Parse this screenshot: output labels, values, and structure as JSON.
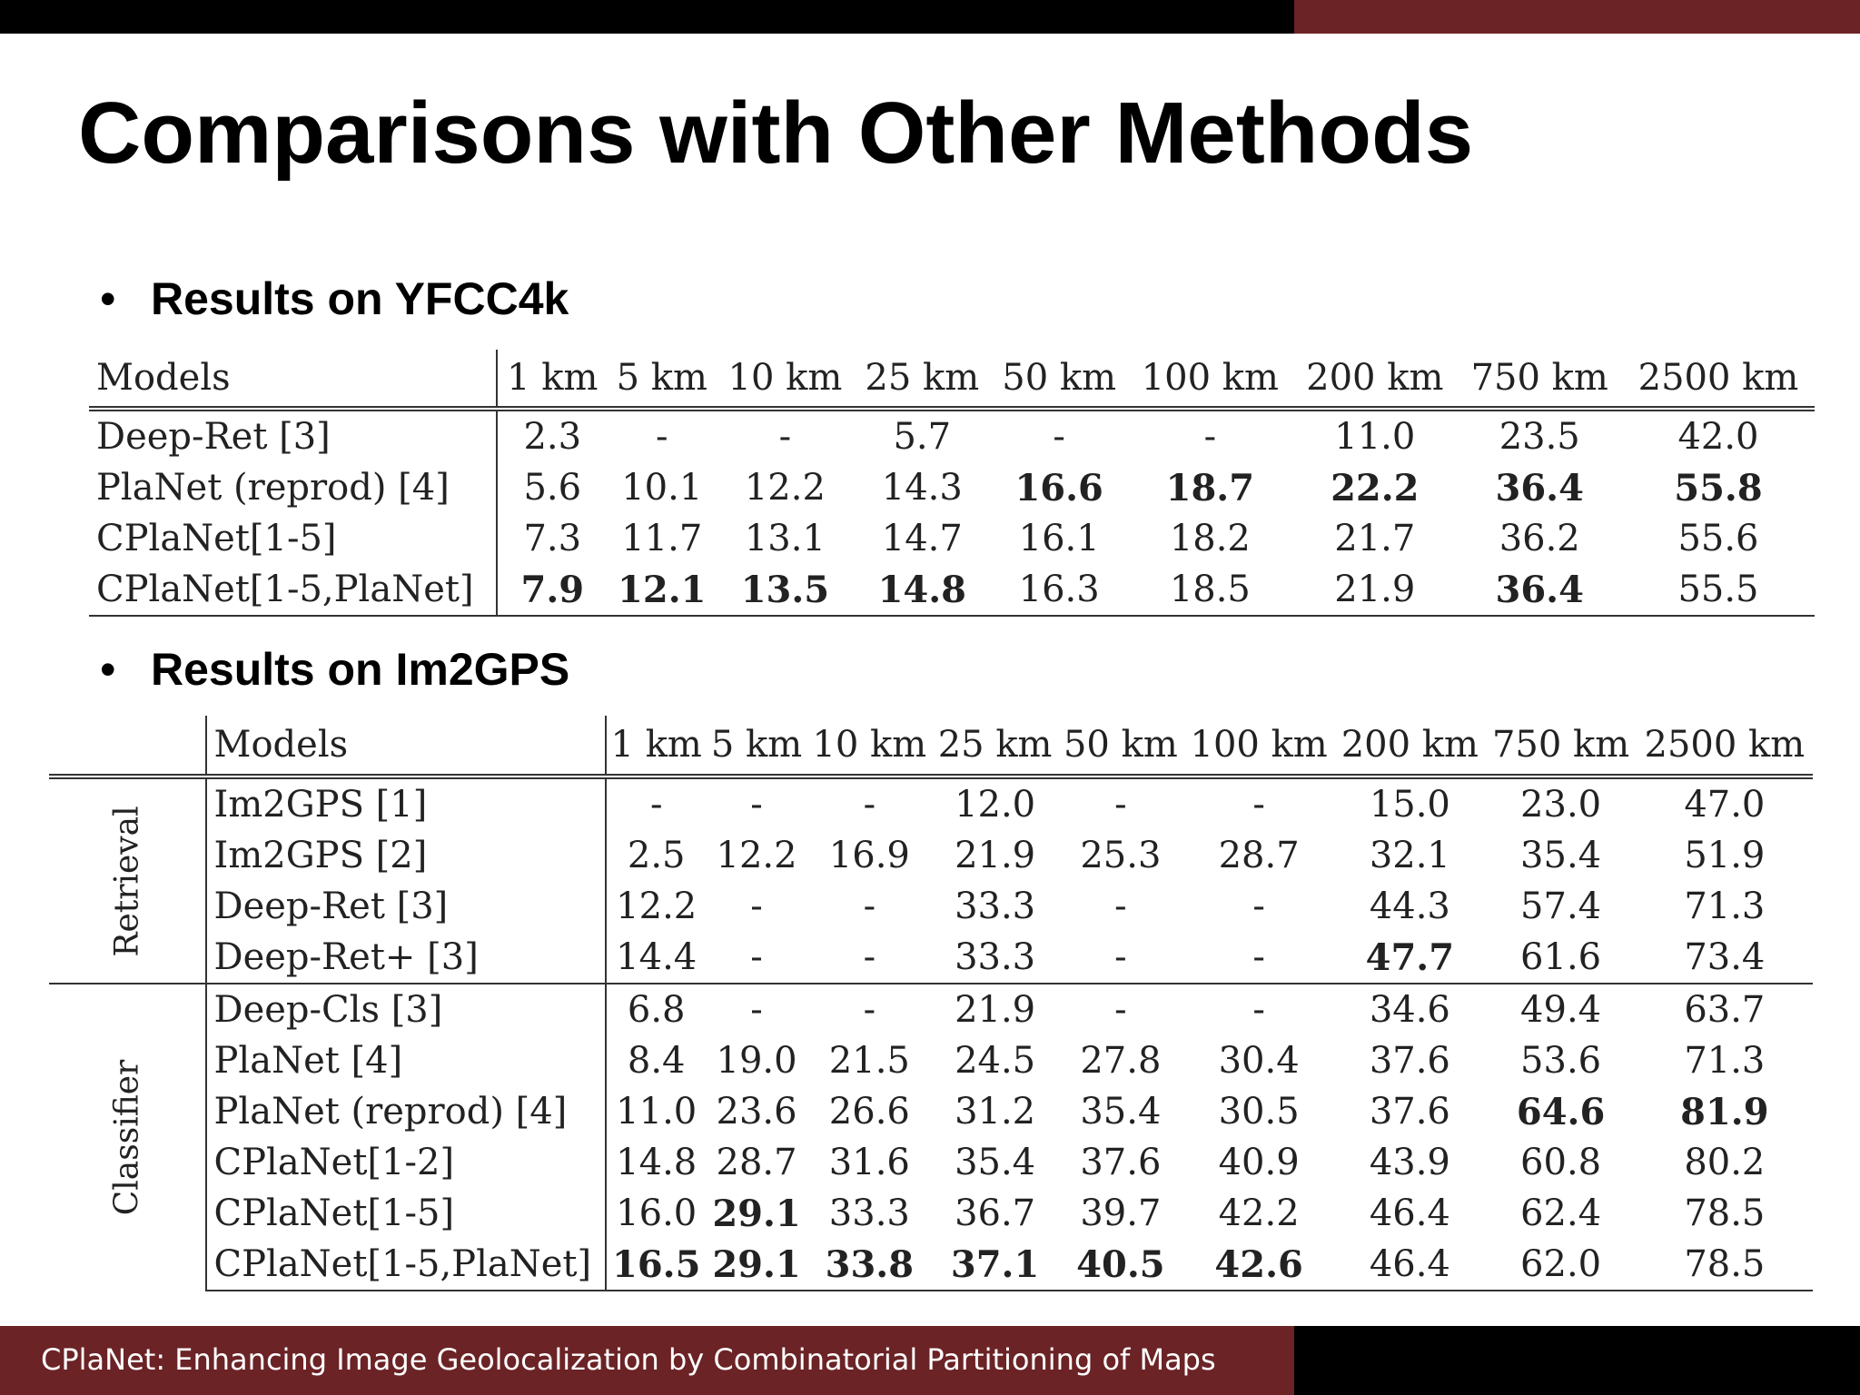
{
  "title": "Comparisons with Other Methods",
  "footer": "CPlaNet: Enhancing Image Geolocalization by Combinatorial Partitioning of Maps",
  "bullet_symbol": "•",
  "colors": {
    "accent": "#6b2326",
    "bar": "#000000"
  },
  "section1": {
    "heading": "Results on YFCC4k",
    "columns": [
      "Models",
      "1 km",
      "5 km",
      "10 km",
      "25 km",
      "50 km",
      "100 km",
      "200 km",
      "750 km",
      "2500 km"
    ],
    "rows": [
      {
        "model": "Deep-Ret [3]",
        "values": [
          "2.3",
          "-",
          "-",
          "5.7",
          "-",
          "-",
          "11.0",
          "23.5",
          "42.0"
        ],
        "bold": []
      },
      {
        "model": "PlaNet (reprod) [4]",
        "values": [
          "5.6",
          "10.1",
          "12.2",
          "14.3",
          "16.6",
          "18.7",
          "22.2",
          "36.4",
          "55.8"
        ],
        "bold": [
          4,
          5,
          6,
          7,
          8
        ]
      },
      {
        "model": "CPlaNet[1-5]",
        "values": [
          "7.3",
          "11.7",
          "13.1",
          "14.7",
          "16.1",
          "18.2",
          "21.7",
          "36.2",
          "55.6"
        ],
        "bold": []
      },
      {
        "model": "CPlaNet[1-5,PlaNet]",
        "values": [
          "7.9",
          "12.1",
          "13.5",
          "14.8",
          "16.3",
          "18.5",
          "21.9",
          "36.4",
          "55.5"
        ],
        "bold": [
          0,
          1,
          2,
          3,
          7
        ]
      }
    ]
  },
  "section2": {
    "heading": "Results on Im2GPS",
    "columns": [
      "Models",
      "1 km",
      "5 km",
      "10 km",
      "25 km",
      "50 km",
      "100 km",
      "200 km",
      "750 km",
      "2500 km"
    ],
    "groups": [
      {
        "label": "Retrieval",
        "rows": [
          {
            "model": "Im2GPS [1]",
            "values": [
              "-",
              "-",
              "-",
              "12.0",
              "-",
              "-",
              "15.0",
              "23.0",
              "47.0"
            ],
            "bold": []
          },
          {
            "model": "Im2GPS [2]",
            "values": [
              "2.5",
              "12.2",
              "16.9",
              "21.9",
              "25.3",
              "28.7",
              "32.1",
              "35.4",
              "51.9"
            ],
            "bold": []
          },
          {
            "model": "Deep-Ret [3]",
            "values": [
              "12.2",
              "-",
              "-",
              "33.3",
              "-",
              "-",
              "44.3",
              "57.4",
              "71.3"
            ],
            "bold": []
          },
          {
            "model": "Deep-Ret+ [3]",
            "values": [
              "14.4",
              "-",
              "-",
              "33.3",
              "-",
              "-",
              "47.7",
              "61.6",
              "73.4"
            ],
            "bold": [
              6
            ]
          }
        ]
      },
      {
        "label": "Classifier",
        "rows": [
          {
            "model": "Deep-Cls [3]",
            "values": [
              "6.8",
              "-",
              "-",
              "21.9",
              "-",
              "-",
              "34.6",
              "49.4",
              "63.7"
            ],
            "bold": []
          },
          {
            "model": "PlaNet [4]",
            "values": [
              "8.4",
              "19.0",
              "21.5",
              "24.5",
              "27.8",
              "30.4",
              "37.6",
              "53.6",
              "71.3"
            ],
            "bold": []
          },
          {
            "model": "PlaNet (reprod) [4]",
            "values": [
              "11.0",
              "23.6",
              "26.6",
              "31.2",
              "35.4",
              "30.5",
              "37.6",
              "64.6",
              "81.9"
            ],
            "bold": [
              7,
              8
            ]
          },
          {
            "model": "CPlaNet[1-2]",
            "values": [
              "14.8",
              "28.7",
              "31.6",
              "35.4",
              "37.6",
              "40.9",
              "43.9",
              "60.8",
              "80.2"
            ],
            "bold": []
          },
          {
            "model": "CPlaNet[1-5]",
            "values": [
              "16.0",
              "29.1",
              "33.3",
              "36.7",
              "39.7",
              "42.2",
              "46.4",
              "62.4",
              "78.5"
            ],
            "bold": [
              1
            ]
          },
          {
            "model": "CPlaNet[1-5,PlaNet]",
            "values": [
              "16.5",
              "29.1",
              "33.8",
              "37.1",
              "40.5",
              "42.6",
              "46.4",
              "62.0",
              "78.5"
            ],
            "bold": [
              0,
              1,
              2,
              3,
              4,
              5
            ]
          }
        ]
      }
    ]
  }
}
